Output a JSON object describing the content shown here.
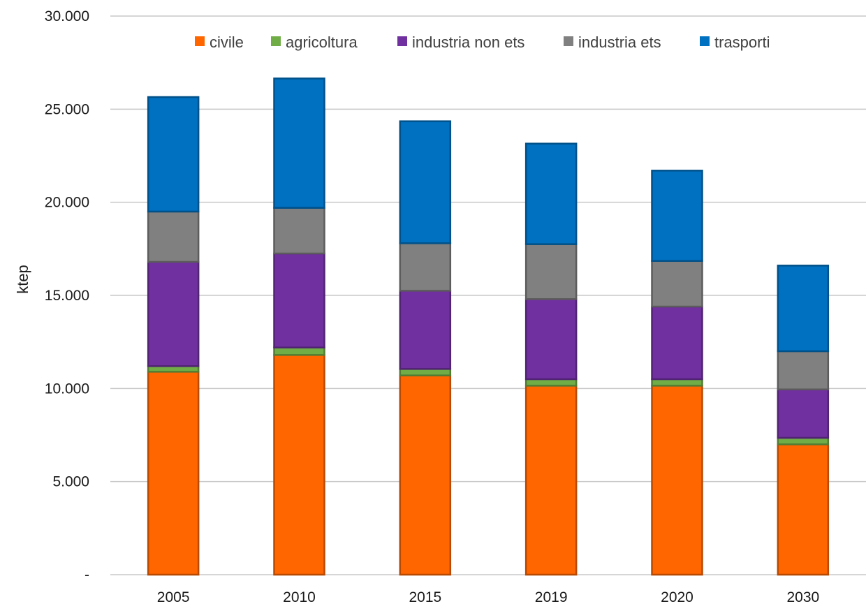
{
  "chart_data": {
    "type": "bar",
    "stacked": true,
    "title": "",
    "xlabel": "",
    "ylabel": "ktep",
    "ylim": [
      0,
      30000
    ],
    "y_ticks": [
      0,
      5000,
      10000,
      15000,
      20000,
      25000,
      30000
    ],
    "y_tick_labels": [
      "-",
      "5.000",
      "10.000",
      "15.000",
      "20.000",
      "25.000",
      "30.000"
    ],
    "categories": [
      "2005",
      "2010",
      "2015",
      "2019",
      "2020",
      "2030"
    ],
    "series": [
      {
        "name": "civile",
        "color": "#FF6600",
        "values": [
          10900,
          11800,
          10700,
          10150,
          10150,
          7000
        ]
      },
      {
        "name": "agricoltura",
        "color": "#70AD47",
        "values": [
          300,
          400,
          350,
          350,
          350,
          350
        ]
      },
      {
        "name": "industria non ets",
        "color": "#7030A0",
        "values": [
          5600,
          5050,
          4200,
          4300,
          3900,
          2600
        ]
      },
      {
        "name": "industria ets",
        "color": "#808080",
        "values": [
          2700,
          2450,
          2550,
          2950,
          2450,
          2050
        ]
      },
      {
        "name": "trasporti",
        "color": "#0070C0",
        "values": [
          6150,
          6950,
          6550,
          5400,
          4850,
          4600
        ]
      }
    ],
    "grid": true,
    "legend_position": "top"
  }
}
